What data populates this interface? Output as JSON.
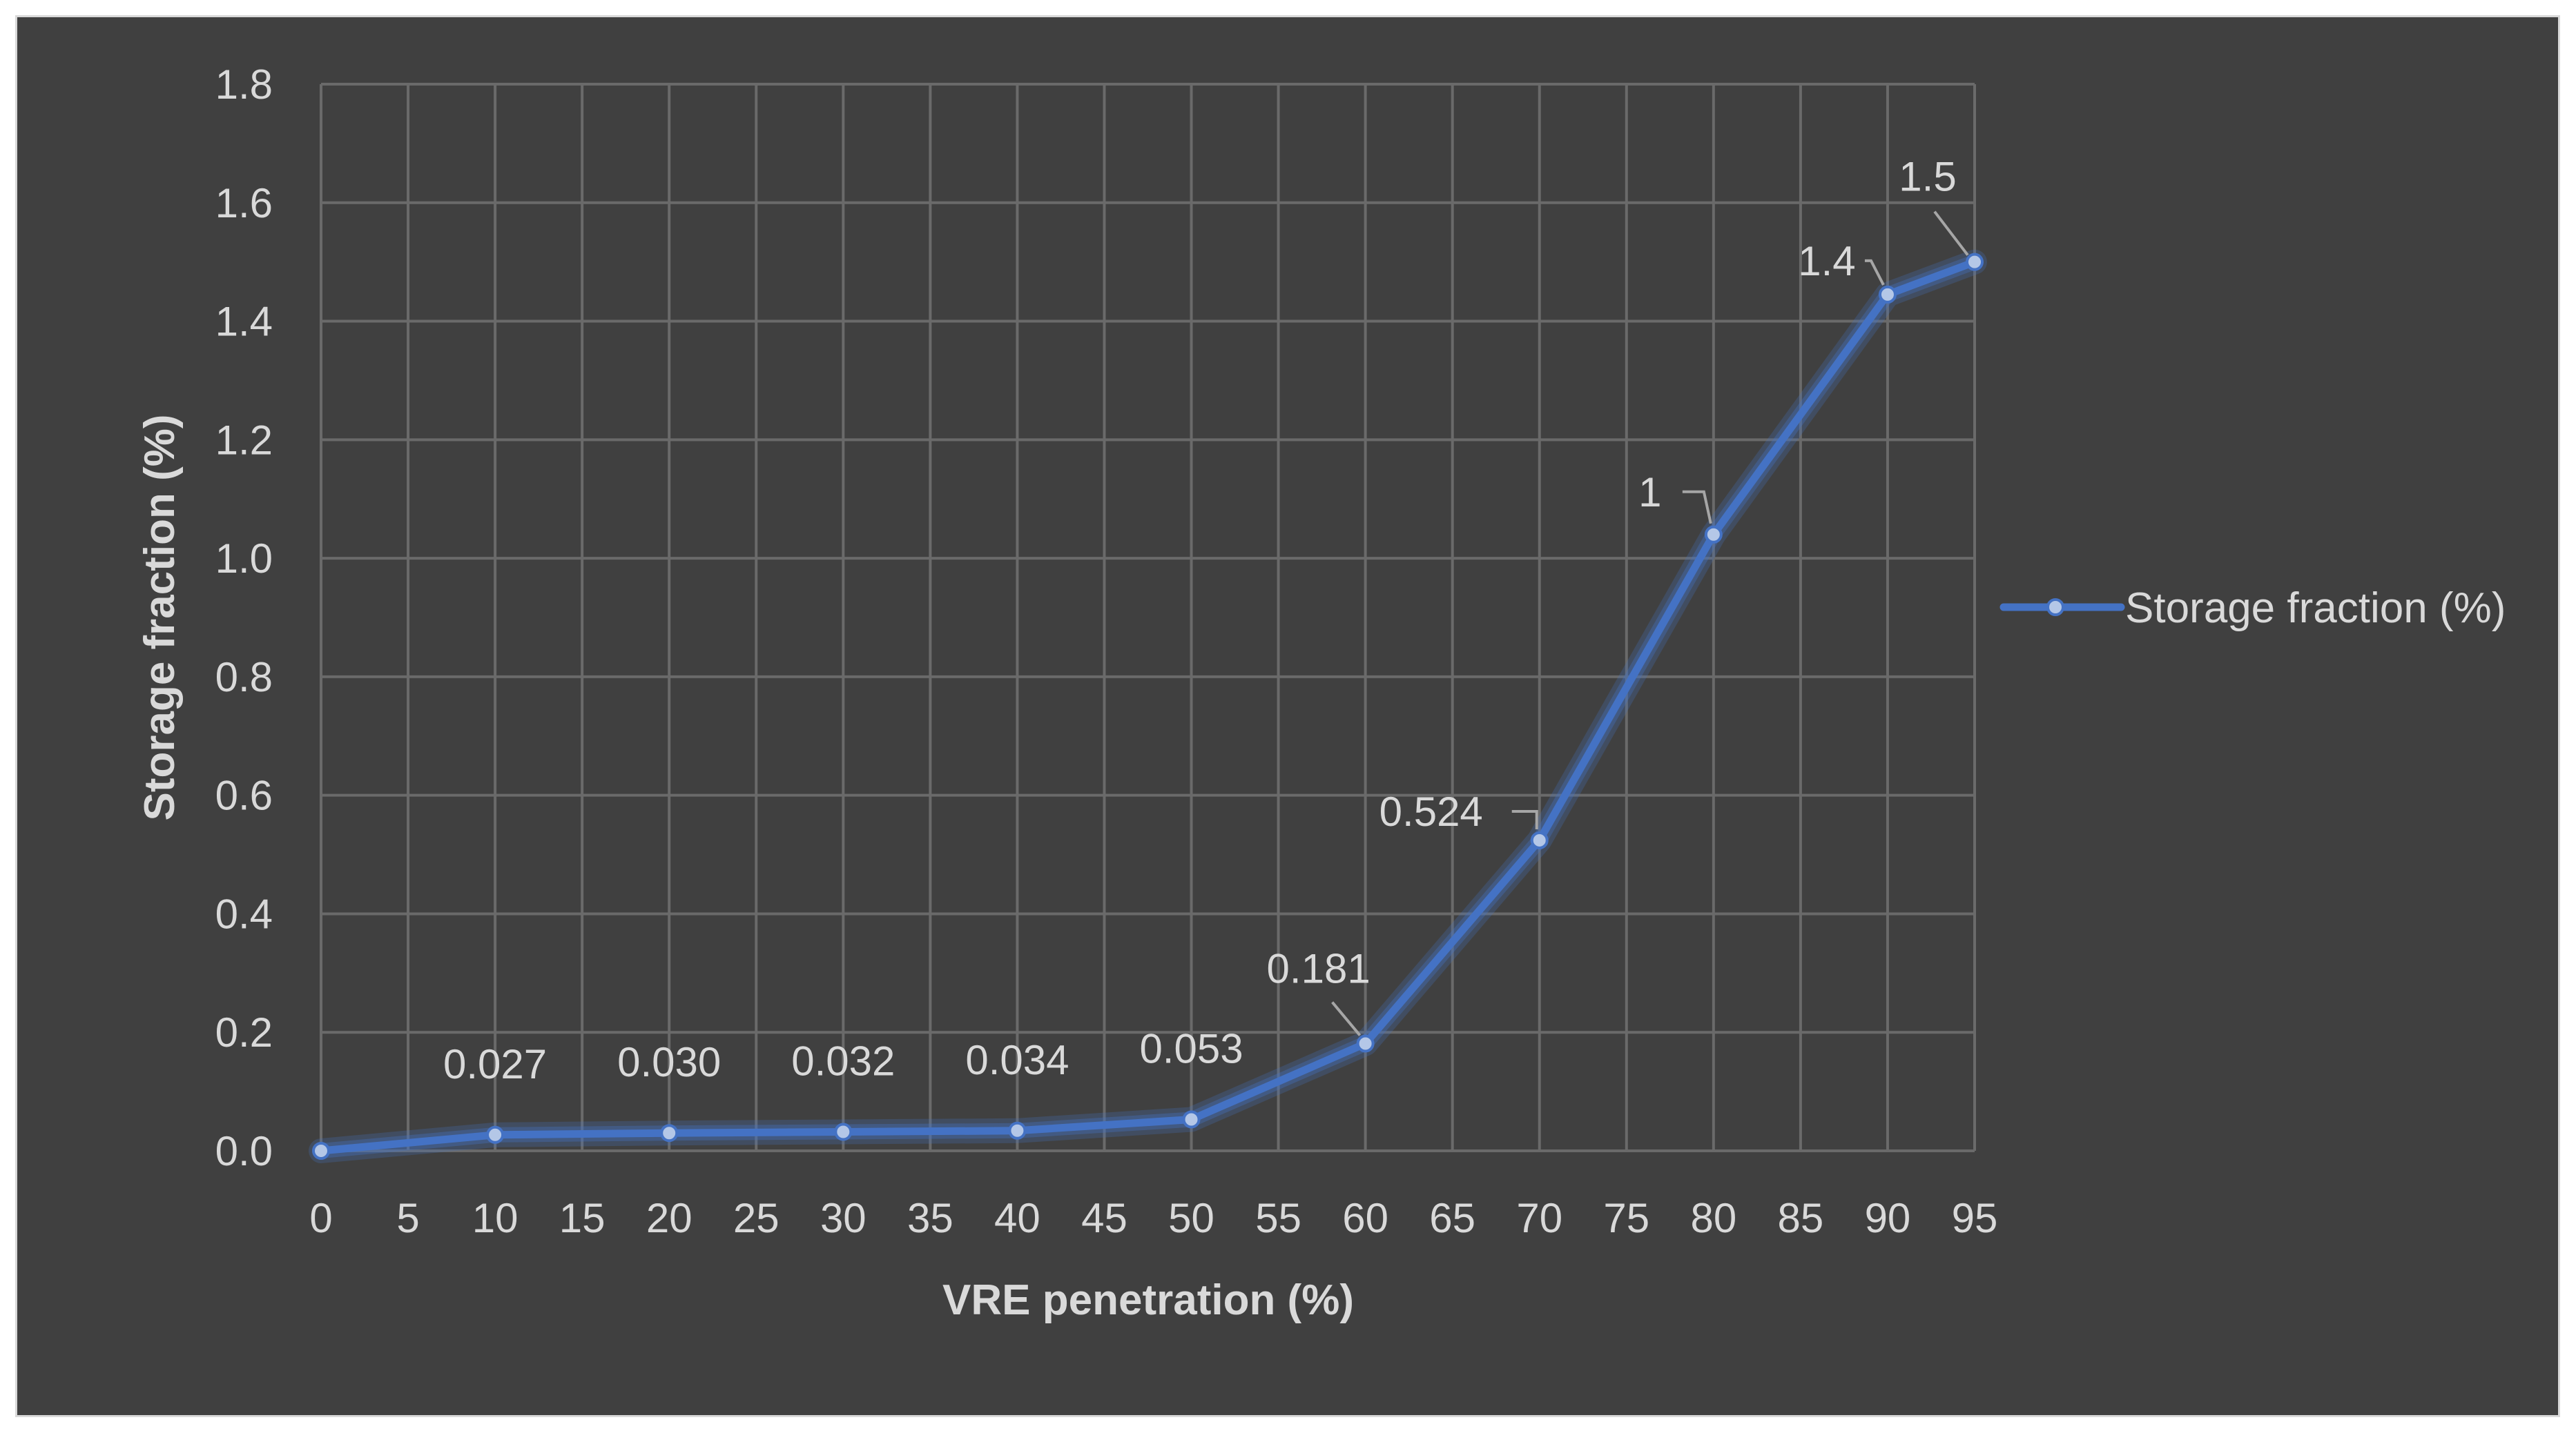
{
  "chart_data": {
    "type": "line",
    "title": "",
    "xlabel": "VRE penetration (%)",
    "ylabel": "Storage fraction (%)",
    "x_ticks": [
      0,
      5,
      10,
      15,
      20,
      25,
      30,
      35,
      40,
      45,
      50,
      55,
      60,
      65,
      70,
      75,
      80,
      85,
      90,
      95
    ],
    "y_ticks": [
      "0.0",
      "0.2",
      "0.4",
      "0.6",
      "0.8",
      "1.0",
      "1.2",
      "1.4",
      "1.6",
      "1.8"
    ],
    "xlim": [
      0,
      95
    ],
    "ylim": [
      0,
      1.8
    ],
    "grid": true,
    "legend_position": "right",
    "series": [
      {
        "name": "Storage fraction (%)",
        "color": "#4472c4",
        "x": [
          0,
          10,
          20,
          30,
          40,
          50,
          60,
          70,
          80,
          90,
          95
        ],
        "y": [
          0,
          0.027,
          0.03,
          0.032,
          0.034,
          0.053,
          0.181,
          0.524,
          1.04,
          1.445,
          1.5
        ],
        "labels": [
          "",
          "0.027",
          "0.030",
          "0.032",
          "0.034",
          "0.053",
          "0.181",
          "0.524",
          "1",
          "1.4",
          "1.5"
        ]
      }
    ]
  }
}
